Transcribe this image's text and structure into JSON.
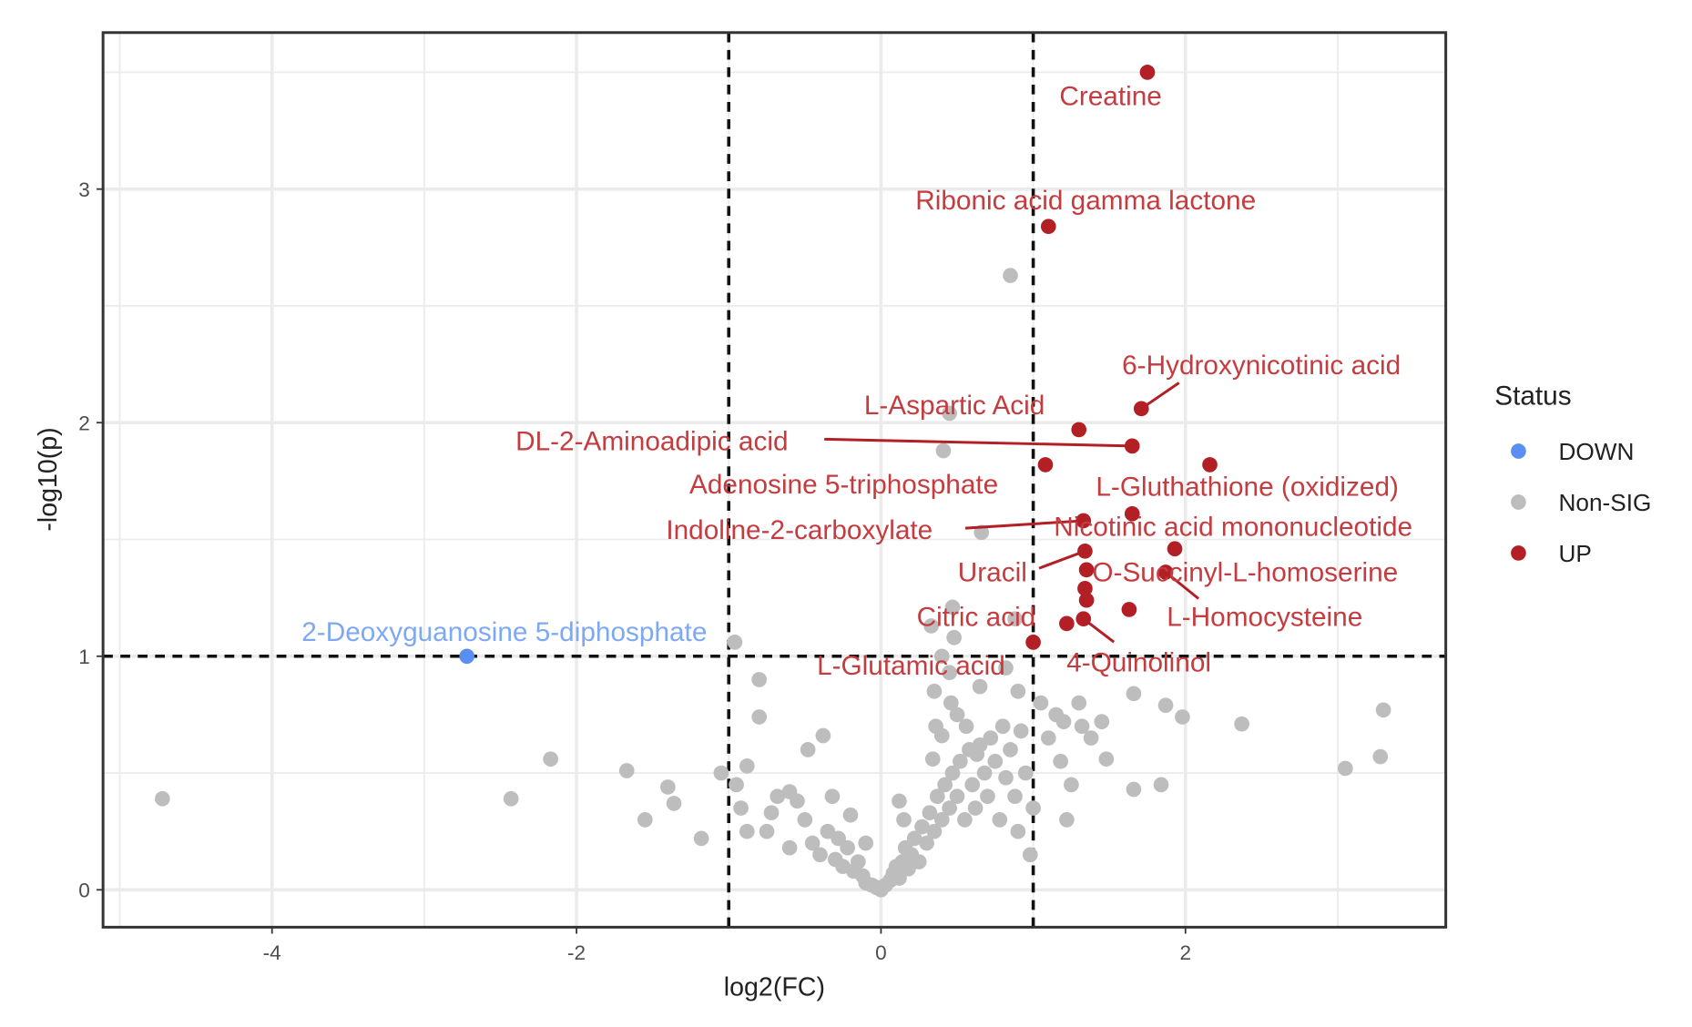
{
  "chart_data": {
    "type": "scatter",
    "title": "",
    "xlabel": "log2(FC)",
    "ylabel": "-log10(p)",
    "xlim": [
      -5.11,
      3.71
    ],
    "ylim": [
      -0.16,
      3.67
    ],
    "xticks": [
      -4,
      -2,
      0,
      2
    ],
    "yticks": [
      0,
      1,
      2,
      3
    ],
    "grid": true,
    "thresholds": {
      "log2fc": [
        -1,
        1
      ],
      "neg_log10_p": 1
    },
    "legend": {
      "title": "Status",
      "placement": "right",
      "entries": [
        "DOWN",
        "Non-SIG",
        "UP"
      ]
    },
    "colors": {
      "DOWN": "#5a8ef0",
      "Non-SIG": "#bdbdbd",
      "UP": "#b21f24",
      "up_label": "#c43c3f",
      "down_label": "#7ea8f2"
    },
    "series": [
      {
        "name": "DOWN",
        "points": [
          {
            "x": -2.72,
            "y": 1.0,
            "label": "2-Deoxyguanosine 5-diphosphate"
          }
        ]
      },
      {
        "name": "UP",
        "points": [
          {
            "x": 1.75,
            "y": 3.5,
            "label": "Creatine"
          },
          {
            "x": 1.1,
            "y": 2.84,
            "label": "Ribonic acid gamma lactone"
          },
          {
            "x": 1.71,
            "y": 2.06,
            "label": "6-Hydroxynicotinic acid"
          },
          {
            "x": 1.3,
            "y": 1.97,
            "label": "L-Aspartic Acid"
          },
          {
            "x": 1.65,
            "y": 1.9,
            "label": "DL-2-Aminoadipic acid"
          },
          {
            "x": 1.08,
            "y": 1.82,
            "label": "Adenosine 5-triphosphate"
          },
          {
            "x": 2.16,
            "y": 1.82,
            "label": "L-Gluthathione (oxidized)"
          },
          {
            "x": 1.33,
            "y": 1.58,
            "label": "Indoline-2-carboxylate"
          },
          {
            "x": 1.65,
            "y": 1.61,
            "label": "Nicotinic acid mononucleotide"
          },
          {
            "x": 1.34,
            "y": 1.45,
            "label": "Uracil"
          },
          {
            "x": 1.35,
            "y": 1.37,
            "label": "O-Succinyl-L-homoserine"
          },
          {
            "x": 1.87,
            "y": 1.36,
            "label": "L-Homocysteine"
          },
          {
            "x": 1.22,
            "y": 1.14,
            "label": "Citric acid"
          },
          {
            "x": 1.0,
            "y": 1.06,
            "label": "L-Glutamic acid"
          },
          {
            "x": 1.33,
            "y": 1.16,
            "label": "4-Quinolinol"
          },
          {
            "x": 1.93,
            "y": 1.46
          },
          {
            "x": 1.34,
            "y": 1.29
          },
          {
            "x": 1.35,
            "y": 1.24
          },
          {
            "x": 1.63,
            "y": 1.2
          }
        ]
      },
      {
        "name": "Non-SIG",
        "points": [
          [
            -4.72,
            0.39
          ],
          [
            -2.43,
            0.39
          ],
          [
            -2.17,
            0.56
          ],
          [
            -1.67,
            0.51
          ],
          [
            -1.55,
            0.3
          ],
          [
            -1.4,
            0.44
          ],
          [
            -1.36,
            0.37
          ],
          [
            -1.18,
            0.22
          ],
          [
            -1.05,
            0.5
          ],
          [
            -0.96,
            1.06
          ],
          [
            -0.8,
            0.9
          ],
          [
            -0.8,
            0.74
          ],
          [
            -0.88,
            0.53
          ],
          [
            -0.95,
            0.45
          ],
          [
            -0.92,
            0.35
          ],
          [
            -0.88,
            0.25
          ],
          [
            -0.75,
            0.25
          ],
          [
            -0.68,
            0.4
          ],
          [
            -0.6,
            0.42
          ],
          [
            -0.55,
            0.38
          ],
          [
            -0.48,
            0.6
          ],
          [
            -0.38,
            0.66
          ],
          [
            -0.5,
            0.3
          ],
          [
            -0.45,
            0.2
          ],
          [
            -0.4,
            0.15
          ],
          [
            -0.35,
            0.25
          ],
          [
            -0.3,
            0.13
          ],
          [
            -0.28,
            0.22
          ],
          [
            -0.25,
            0.1
          ],
          [
            -0.22,
            0.18
          ],
          [
            -0.18,
            0.08
          ],
          [
            -0.15,
            0.12
          ],
          [
            -0.12,
            0.06
          ],
          [
            -0.1,
            0.03
          ],
          [
            -0.06,
            0.02
          ],
          [
            -0.03,
            0.01
          ],
          [
            0.0,
            0.0
          ],
          [
            0.03,
            0.02
          ],
          [
            0.06,
            0.04
          ],
          [
            0.08,
            0.07
          ],
          [
            0.1,
            0.1
          ],
          [
            0.12,
            0.05
          ],
          [
            0.14,
            0.12
          ],
          [
            0.16,
            0.18
          ],
          [
            0.18,
            0.09
          ],
          [
            0.2,
            0.15
          ],
          [
            0.22,
            0.22
          ],
          [
            0.25,
            0.12
          ],
          [
            0.27,
            0.27
          ],
          [
            0.3,
            0.2
          ],
          [
            0.32,
            0.33
          ],
          [
            0.35,
            0.25
          ],
          [
            0.37,
            0.4
          ],
          [
            0.4,
            0.3
          ],
          [
            0.42,
            0.45
          ],
          [
            0.45,
            0.35
          ],
          [
            0.47,
            0.5
          ],
          [
            0.5,
            0.4
          ],
          [
            0.52,
            0.55
          ],
          [
            0.55,
            0.3
          ],
          [
            0.58,
            0.6
          ],
          [
            0.6,
            0.45
          ],
          [
            0.62,
            0.35
          ],
          [
            0.65,
            0.62
          ],
          [
            0.68,
            0.5
          ],
          [
            0.7,
            0.4
          ],
          [
            0.72,
            0.65
          ],
          [
            0.75,
            0.55
          ],
          [
            0.78,
            0.3
          ],
          [
            0.8,
            0.7
          ],
          [
            0.82,
            0.48
          ],
          [
            0.85,
            0.6
          ],
          [
            0.88,
            0.4
          ],
          [
            0.9,
            0.25
          ],
          [
            0.92,
            0.68
          ],
          [
            0.95,
            0.5
          ],
          [
            0.98,
            0.15
          ],
          [
            1.0,
            0.35
          ],
          [
            0.34,
            0.56
          ],
          [
            0.36,
            0.7
          ],
          [
            0.4,
            0.66
          ],
          [
            0.46,
            0.8
          ],
          [
            0.35,
            0.85
          ],
          [
            0.45,
            0.93
          ],
          [
            0.48,
            1.08
          ],
          [
            0.4,
            1.0
          ],
          [
            0.5,
            0.75
          ],
          [
            0.56,
            0.7
          ],
          [
            0.63,
            0.58
          ],
          [
            0.85,
            2.63
          ],
          [
            0.45,
            2.04
          ],
          [
            0.41,
            1.88
          ],
          [
            0.66,
            1.53
          ],
          [
            0.47,
            1.21
          ],
          [
            0.88,
            1.16
          ],
          [
            0.82,
            0.95
          ],
          [
            0.9,
            0.85
          ],
          [
            0.65,
            0.87
          ],
          [
            0.33,
            1.13
          ],
          [
            1.05,
            0.8
          ],
          [
            1.1,
            0.65
          ],
          [
            1.15,
            0.75
          ],
          [
            1.18,
            0.55
          ],
          [
            1.2,
            0.72
          ],
          [
            1.25,
            0.45
          ],
          [
            1.22,
            0.3
          ],
          [
            1.3,
            0.8
          ],
          [
            1.32,
            0.7
          ],
          [
            1.38,
            0.65
          ],
          [
            1.45,
            0.72
          ],
          [
            1.48,
            0.56
          ],
          [
            1.66,
            0.84
          ],
          [
            1.87,
            0.79
          ],
          [
            1.98,
            0.74
          ],
          [
            1.84,
            0.45
          ],
          [
            1.66,
            0.43
          ],
          [
            2.37,
            0.71
          ],
          [
            3.3,
            0.77
          ],
          [
            3.28,
            0.57
          ],
          [
            3.05,
            0.52
          ],
          [
            -0.32,
            0.4
          ],
          [
            -0.2,
            0.32
          ],
          [
            -0.1,
            0.2
          ],
          [
            0.12,
            0.38
          ],
          [
            0.15,
            0.3
          ],
          [
            -0.6,
            0.18
          ],
          [
            -0.72,
            0.33
          ]
        ]
      }
    ]
  }
}
